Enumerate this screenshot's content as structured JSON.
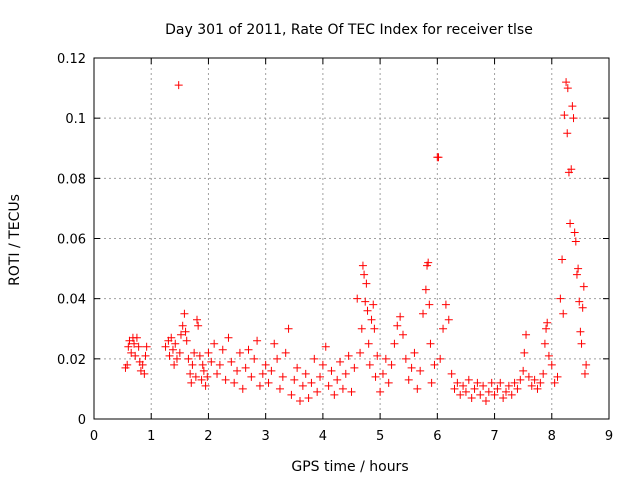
{
  "chart_data": {
    "type": "scatter",
    "title": "Day 301 of 2011, Rate Of TEC Index for receiver tlse",
    "xlabel": "GPS time / hours",
    "ylabel": "ROTI / TECUs",
    "xlim": [
      0,
      9
    ],
    "ylim": [
      0,
      0.12
    ],
    "x_ticks": [
      "0",
      "1",
      "2",
      "3",
      "4",
      "5",
      "6",
      "7",
      "8",
      "9"
    ],
    "y_ticks": [
      "0",
      "0.02",
      "0.04",
      "0.06",
      "0.08",
      "0.1",
      "0.12"
    ],
    "grid": true,
    "marker": "+",
    "marker_color": "#ff0000",
    "series": [
      {
        "name": "ROTI",
        "points": [
          [
            0.55,
            0.017
          ],
          [
            0.58,
            0.018
          ],
          [
            0.6,
            0.024
          ],
          [
            0.62,
            0.026
          ],
          [
            0.65,
            0.022
          ],
          [
            0.68,
            0.027
          ],
          [
            0.7,
            0.025
          ],
          [
            0.72,
            0.021
          ],
          [
            0.75,
            0.027
          ],
          [
            0.78,
            0.024
          ],
          [
            0.8,
            0.019
          ],
          [
            0.82,
            0.016
          ],
          [
            0.85,
            0.018
          ],
          [
            0.88,
            0.015
          ],
          [
            0.9,
            0.021
          ],
          [
            0.92,
            0.024
          ],
          [
            1.25,
            0.024
          ],
          [
            1.3,
            0.026
          ],
          [
            1.32,
            0.021
          ],
          [
            1.35,
            0.027
          ],
          [
            1.38,
            0.023
          ],
          [
            1.4,
            0.018
          ],
          [
            1.42,
            0.025
          ],
          [
            1.45,
            0.02
          ],
          [
            1.48,
            0.111
          ],
          [
            1.5,
            0.022
          ],
          [
            1.52,
            0.028
          ],
          [
            1.55,
            0.031
          ],
          [
            1.58,
            0.035
          ],
          [
            1.6,
            0.029
          ],
          [
            1.62,
            0.026
          ],
          [
            1.65,
            0.02
          ],
          [
            1.68,
            0.015
          ],
          [
            1.7,
            0.012
          ],
          [
            1.72,
            0.018
          ],
          [
            1.75,
            0.022
          ],
          [
            1.78,
            0.014
          ],
          [
            1.8,
            0.033
          ],
          [
            1.82,
            0.031
          ],
          [
            1.85,
            0.021
          ],
          [
            1.88,
            0.013
          ],
          [
            1.9,
            0.018
          ],
          [
            1.92,
            0.016
          ],
          [
            1.95,
            0.011
          ],
          [
            1.98,
            0.014
          ],
          [
            2.0,
            0.022
          ],
          [
            2.05,
            0.019
          ],
          [
            2.1,
            0.025
          ],
          [
            2.15,
            0.015
          ],
          [
            2.2,
            0.018
          ],
          [
            2.25,
            0.023
          ],
          [
            2.3,
            0.013
          ],
          [
            2.35,
            0.027
          ],
          [
            2.4,
            0.019
          ],
          [
            2.45,
            0.012
          ],
          [
            2.5,
            0.016
          ],
          [
            2.55,
            0.022
          ],
          [
            2.6,
            0.01
          ],
          [
            2.65,
            0.017
          ],
          [
            2.7,
            0.023
          ],
          [
            2.75,
            0.014
          ],
          [
            2.8,
            0.02
          ],
          [
            2.85,
            0.026
          ],
          [
            2.9,
            0.011
          ],
          [
            2.95,
            0.015
          ],
          [
            3.0,
            0.018
          ],
          [
            3.05,
            0.012
          ],
          [
            3.1,
            0.016
          ],
          [
            3.15,
            0.025
          ],
          [
            3.2,
            0.02
          ],
          [
            3.25,
            0.01
          ],
          [
            3.3,
            0.014
          ],
          [
            3.35,
            0.022
          ],
          [
            3.4,
            0.03
          ],
          [
            3.45,
            0.008
          ],
          [
            3.5,
            0.013
          ],
          [
            3.55,
            0.017
          ],
          [
            3.6,
            0.006
          ],
          [
            3.65,
            0.011
          ],
          [
            3.7,
            0.015
          ],
          [
            3.75,
            0.007
          ],
          [
            3.8,
            0.012
          ],
          [
            3.85,
            0.02
          ],
          [
            3.9,
            0.009
          ],
          [
            3.95,
            0.014
          ],
          [
            4.0,
            0.018
          ],
          [
            4.05,
            0.024
          ],
          [
            4.1,
            0.011
          ],
          [
            4.15,
            0.016
          ],
          [
            4.2,
            0.008
          ],
          [
            4.25,
            0.013
          ],
          [
            4.3,
            0.019
          ],
          [
            4.35,
            0.01
          ],
          [
            4.4,
            0.015
          ],
          [
            4.45,
            0.021
          ],
          [
            4.5,
            0.009
          ],
          [
            4.55,
            0.017
          ],
          [
            4.6,
            0.04
          ],
          [
            4.65,
            0.022
          ],
          [
            4.68,
            0.03
          ],
          [
            4.7,
            0.051
          ],
          [
            4.72,
            0.048
          ],
          [
            4.74,
            0.039
          ],
          [
            4.76,
            0.045
          ],
          [
            4.78,
            0.036
          ],
          [
            4.8,
            0.025
          ],
          [
            4.82,
            0.018
          ],
          [
            4.85,
            0.033
          ],
          [
            4.88,
            0.038
          ],
          [
            4.9,
            0.03
          ],
          [
            4.92,
            0.014
          ],
          [
            4.95,
            0.021
          ],
          [
            5.0,
            0.009
          ],
          [
            5.05,
            0.015
          ],
          [
            5.1,
            0.02
          ],
          [
            5.15,
            0.012
          ],
          [
            5.2,
            0.018
          ],
          [
            5.25,
            0.025
          ],
          [
            5.3,
            0.031
          ],
          [
            5.35,
            0.034
          ],
          [
            5.4,
            0.028
          ],
          [
            5.45,
            0.02
          ],
          [
            5.5,
            0.013
          ],
          [
            5.55,
            0.017
          ],
          [
            5.6,
            0.022
          ],
          [
            5.65,
            0.01
          ],
          [
            5.7,
            0.016
          ],
          [
            5.75,
            0.035
          ],
          [
            5.8,
            0.043
          ],
          [
            5.82,
            0.051
          ],
          [
            5.84,
            0.052
          ],
          [
            5.86,
            0.038
          ],
          [
            5.88,
            0.025
          ],
          [
            5.9,
            0.012
          ],
          [
            5.95,
            0.018
          ],
          [
            6.0,
            0.087
          ],
          [
            6.02,
            0.087
          ],
          [
            6.05,
            0.02
          ],
          [
            6.1,
            0.03
          ],
          [
            6.15,
            0.038
          ],
          [
            6.2,
            0.033
          ],
          [
            6.25,
            0.015
          ],
          [
            6.3,
            0.01
          ],
          [
            6.35,
            0.012
          ],
          [
            6.4,
            0.008
          ],
          [
            6.45,
            0.011
          ],
          [
            6.5,
            0.009
          ],
          [
            6.55,
            0.013
          ],
          [
            6.6,
            0.007
          ],
          [
            6.65,
            0.01
          ],
          [
            6.7,
            0.012
          ],
          [
            6.75,
            0.008
          ],
          [
            6.8,
            0.011
          ],
          [
            6.85,
            0.006
          ],
          [
            6.9,
            0.009
          ],
          [
            6.95,
            0.012
          ],
          [
            7.0,
            0.008
          ],
          [
            7.05,
            0.01
          ],
          [
            7.1,
            0.012
          ],
          [
            7.15,
            0.007
          ],
          [
            7.2,
            0.009
          ],
          [
            7.25,
            0.011
          ],
          [
            7.3,
            0.008
          ],
          [
            7.35,
            0.012
          ],
          [
            7.4,
            0.01
          ],
          [
            7.45,
            0.013
          ],
          [
            7.5,
            0.016
          ],
          [
            7.52,
            0.022
          ],
          [
            7.55,
            0.028
          ],
          [
            7.6,
            0.014
          ],
          [
            7.65,
            0.011
          ],
          [
            7.7,
            0.013
          ],
          [
            7.75,
            0.01
          ],
          [
            7.8,
            0.012
          ],
          [
            7.85,
            0.015
          ],
          [
            7.88,
            0.025
          ],
          [
            7.9,
            0.03
          ],
          [
            7.92,
            0.032
          ],
          [
            7.95,
            0.021
          ],
          [
            8.0,
            0.018
          ],
          [
            8.05,
            0.012
          ],
          [
            8.1,
            0.014
          ],
          [
            8.15,
            0.04
          ],
          [
            8.18,
            0.053
          ],
          [
            8.2,
            0.035
          ],
          [
            8.22,
            0.101
          ],
          [
            8.25,
            0.112
          ],
          [
            8.27,
            0.095
          ],
          [
            8.28,
            0.11
          ],
          [
            8.3,
            0.082
          ],
          [
            8.32,
            0.065
          ],
          [
            8.34,
            0.083
          ],
          [
            8.36,
            0.104
          ],
          [
            8.38,
            0.1
          ],
          [
            8.4,
            0.062
          ],
          [
            8.42,
            0.059
          ],
          [
            8.44,
            0.048
          ],
          [
            8.46,
            0.05
          ],
          [
            8.48,
            0.039
          ],
          [
            8.5,
            0.029
          ],
          [
            8.52,
            0.025
          ],
          [
            8.54,
            0.037
          ],
          [
            8.56,
            0.044
          ],
          [
            8.58,
            0.015
          ],
          [
            8.6,
            0.018
          ]
        ]
      }
    ]
  }
}
